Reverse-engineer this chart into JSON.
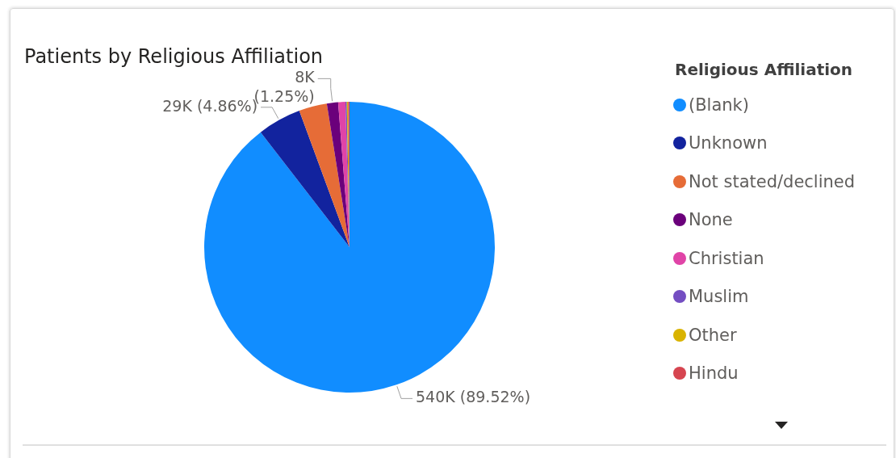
{
  "chart_data": {
    "type": "pie",
    "title": "Patients by Religious Affiliation",
    "legend_title": "Religious Affiliation",
    "legend": "right",
    "categories": [
      "(Blank)",
      "Unknown",
      "Not stated/declined",
      "None",
      "Christian",
      "Muslim",
      "Other",
      "Hindu"
    ],
    "values": [
      89.52,
      4.86,
      3.12,
      1.25,
      0.8,
      0.15,
      0.15,
      0.15
    ],
    "colors": [
      "#118dff",
      "#12239e",
      "#e66c37",
      "#6b007b",
      "#e044a7",
      "#744ec2",
      "#d9b300",
      "#d64550"
    ],
    "value_labels": [
      "540K (89.52%)",
      "29K (4.86%)",
      null,
      "8K (1.25%)",
      null,
      null,
      null,
      null
    ]
  }
}
